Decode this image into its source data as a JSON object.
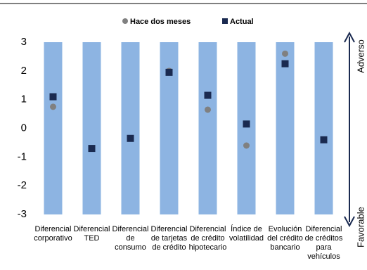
{
  "chart_data": {
    "type": "scatter",
    "categories": [
      [
        "Diferencial",
        "corporativo"
      ],
      [
        "Diferencial",
        "TED"
      ],
      [
        "Diferencial",
        "de",
        "consumo"
      ],
      [
        "Diferencial",
        "de tarjetas",
        "de crédito"
      ],
      [
        "Diferencial",
        "de crédito",
        "hipotecario"
      ],
      [
        "Índice de",
        "volatilidad"
      ],
      [
        "Evolución",
        "del crédito",
        "bancario"
      ],
      [
        "Diferencial",
        "de créditos",
        "para",
        "vehículos"
      ]
    ],
    "series": [
      {
        "name": "Hace dos meses",
        "color": "#808080",
        "marker": "circle",
        "values": [
          0.75,
          -0.7,
          -0.35,
          2.0,
          0.65,
          -0.6,
          2.6,
          -0.4
        ]
      },
      {
        "name": "Actual",
        "color": "#1a2a50",
        "marker": "square",
        "values": [
          1.1,
          -0.7,
          -0.35,
          1.95,
          1.15,
          0.15,
          2.25,
          -0.4
        ]
      }
    ],
    "bar_color": "#8db4e2",
    "ylim": [
      -3,
      3
    ],
    "yticks": [
      -3,
      -2,
      -1,
      0,
      1,
      2,
      3
    ],
    "annotations": {
      "top": "Adverso",
      "bottom": "Favorable"
    }
  }
}
